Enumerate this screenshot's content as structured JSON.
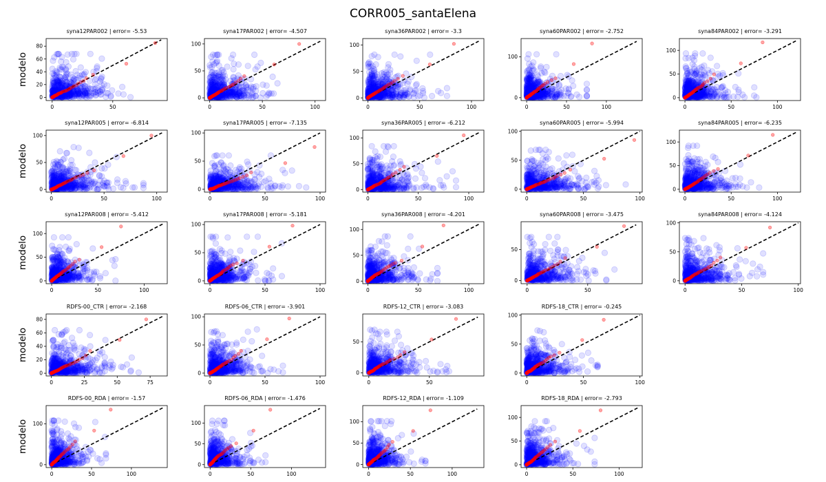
{
  "figure": {
    "title": "CORR005_santaElena"
  },
  "chart_data": {
    "type": "scatter",
    "title": "CORR005_santaElena",
    "ylabel": "modelo",
    "xlabel": "",
    "grid": false,
    "identity_line": "dashed black y=x",
    "series_styles": {
      "observed_vs_model": {
        "color": "#0000ff",
        "alpha": 0.12,
        "marker": "o"
      },
      "quantile_pairs": {
        "color": "#ff0000",
        "alpha": 0.35,
        "marker": "o"
      }
    },
    "panels": [
      {
        "title": "syna12PAR002 | error= -5.53",
        "xticks": [
          0,
          50
        ],
        "yticks": [
          0,
          20,
          40,
          60,
          80
        ],
        "xlim": [
          -5,
          95
        ],
        "ylim": [
          -5,
          92
        ],
        "line_max": 90,
        "obs_max": 85,
        "mod_max": 85
      },
      {
        "title": "syna17PAR002 | error= -4.507",
        "xticks": [
          0,
          50,
          100
        ],
        "yticks": [
          0,
          50,
          100
        ],
        "xlim": [
          -5,
          110
        ],
        "ylim": [
          -5,
          110
        ],
        "line_max": 105,
        "obs_max": 85,
        "mod_max": 100
      },
      {
        "title": "syna36PAR002 | error= -3.3",
        "xticks": [
          0,
          50,
          100
        ],
        "yticks": [
          0,
          50,
          100
        ],
        "xlim": [
          -5,
          112
        ],
        "ylim": [
          -5,
          112
        ],
        "line_max": 107,
        "obs_max": 83,
        "mod_max": 102
      },
      {
        "title": "syna60PAR002 | error= -2.752",
        "xticks": [
          0,
          50,
          100
        ],
        "yticks": [
          0,
          100
        ],
        "xlim": [
          -7,
          145
        ],
        "ylim": [
          -7,
          145
        ],
        "line_max": 138,
        "obs_max": 82,
        "mod_max": 133
      },
      {
        "title": "syna84PAR002 | error= -3.291",
        "xticks": [
          0,
          50,
          100
        ],
        "yticks": [
          0,
          50,
          100
        ],
        "xlim": [
          -6,
          125
        ],
        "ylim": [
          -6,
          125
        ],
        "line_max": 120,
        "obs_max": 84,
        "mod_max": 117
      },
      {
        "title": "syna12PAR005 | error= -6.814",
        "xticks": [
          0,
          50,
          100
        ],
        "yticks": [
          0,
          50,
          100
        ],
        "xlim": [
          -5,
          110
        ],
        "ylim": [
          -5,
          110
        ],
        "line_max": 105,
        "obs_max": 95,
        "mod_max": 100
      },
      {
        "title": "syna17PAR005 | error= -7.135",
        "xticks": [
          0,
          50,
          100
        ],
        "yticks": [
          0,
          50,
          100
        ],
        "xlim": [
          -5,
          105
        ],
        "ylim": [
          -5,
          105
        ],
        "line_max": 100,
        "obs_max": 95,
        "mod_max": 75
      },
      {
        "title": "syna36PAR005 | error= -6.212",
        "xticks": [
          0,
          50,
          100
        ],
        "yticks": [
          0,
          50,
          100
        ],
        "xlim": [
          -5,
          115
        ],
        "ylim": [
          -5,
          115
        ],
        "line_max": 110,
        "obs_max": 95,
        "mod_max": 105
      },
      {
        "title": "syna60PAR005 | error= -5.994",
        "xticks": [
          0,
          50,
          100
        ],
        "yticks": [
          0,
          50,
          100
        ],
        "xlim": [
          -5,
          102
        ],
        "ylim": [
          -5,
          102
        ],
        "line_max": 100,
        "obs_max": 95,
        "mod_max": 85
      },
      {
        "title": "syna84PAR005 | error= -6.235",
        "xticks": [
          0,
          50,
          100
        ],
        "yticks": [
          0,
          50,
          100
        ],
        "xlim": [
          -6,
          125
        ],
        "ylim": [
          -6,
          125
        ],
        "line_max": 120,
        "obs_max": 95,
        "mod_max": 115
      },
      {
        "title": "syna12PAR008 | error= -5.412",
        "xticks": [
          0,
          50,
          100
        ],
        "yticks": [
          0,
          50,
          100
        ],
        "xlim": [
          -6,
          125
        ],
        "ylim": [
          -6,
          125
        ],
        "line_max": 120,
        "obs_max": 75,
        "mod_max": 115
      },
      {
        "title": "syna17PAR008 | error= -5.181",
        "xticks": [
          0,
          50,
          100
        ],
        "yticks": [
          0,
          50,
          100
        ],
        "xlim": [
          -5,
          105
        ],
        "ylim": [
          -5,
          105
        ],
        "line_max": 100,
        "obs_max": 75,
        "mod_max": 98
      },
      {
        "title": "syna36PAR008 | error= -4.201",
        "xticks": [
          0,
          50,
          100
        ],
        "yticks": [
          0,
          50,
          100
        ],
        "xlim": [
          -5,
          115
        ],
        "ylim": [
          -5,
          115
        ],
        "line_max": 110,
        "obs_max": 75,
        "mod_max": 108
      },
      {
        "title": "syna60PAR008 | error= -3.475",
        "xticks": [
          0,
          50
        ],
        "yticks": [
          0,
          50
        ],
        "xlim": [
          -5,
          95
        ],
        "ylim": [
          -5,
          95
        ],
        "line_max": 90,
        "obs_max": 80,
        "mod_max": 88
      },
      {
        "title": "syna84PAR008 | error= -4.124",
        "xticks": [
          0,
          50,
          100
        ],
        "yticks": [
          0,
          50,
          100
        ],
        "xlim": [
          -5,
          102
        ],
        "ylim": [
          -5,
          102
        ],
        "line_max": 100,
        "obs_max": 75,
        "mod_max": 92
      },
      {
        "title": "RDFS-00_CTR | error= -2.168",
        "xticks": [
          0,
          25,
          50,
          75
        ],
        "yticks": [
          0,
          20,
          40,
          60,
          80
        ],
        "xlim": [
          -4,
          88
        ],
        "ylim": [
          -4,
          88
        ],
        "line_max": 85,
        "obs_max": 72,
        "mod_max": 80
      },
      {
        "title": "RDFS-06_CTR | error= -3.901",
        "xticks": [
          0,
          50,
          100
        ],
        "yticks": [
          0,
          50,
          100
        ],
        "xlim": [
          -5,
          105
        ],
        "ylim": [
          -5,
          105
        ],
        "line_max": 100,
        "obs_max": 72,
        "mod_max": 97
      },
      {
        "title": "RDFS-12_CTR | error= -3.083",
        "xticks": [
          0,
          50
        ],
        "yticks": [
          0,
          50
        ],
        "xlim": [
          -5,
          95
        ],
        "ylim": [
          -5,
          95
        ],
        "line_max": 90,
        "obs_max": 72,
        "mod_max": 87
      },
      {
        "title": "RDFS-18_CTR | error= -0.245",
        "xticks": [
          0,
          50,
          100
        ],
        "yticks": [
          0,
          50,
          100
        ],
        "xlim": [
          -5,
          102
        ],
        "ylim": [
          -5,
          102
        ],
        "line_max": 100,
        "obs_max": 68,
        "mod_max": 92
      },
      null,
      {
        "title": "RDFS-00_RDA | error= -1.57",
        "xticks": [
          0,
          50,
          100
        ],
        "yticks": [
          0,
          100
        ],
        "xlim": [
          -7,
          145
        ],
        "ylim": [
          -7,
          145
        ],
        "line_max": 140,
        "obs_max": 74,
        "mod_max": 135
      },
      {
        "title": "RDFS-06_RDA | error= -1.476",
        "xticks": [
          0,
          50,
          100
        ],
        "yticks": [
          0,
          50,
          100
        ],
        "xlim": [
          -7,
          142
        ],
        "ylim": [
          -7,
          142
        ],
        "line_max": 135,
        "obs_max": 74,
        "mod_max": 132
      },
      {
        "title": "RDFS-12_RDA | error= -1.109",
        "xticks": [
          0,
          50,
          100
        ],
        "yticks": [
          0,
          50,
          100
        ],
        "xlim": [
          -7,
          138
        ],
        "ylim": [
          -7,
          138
        ],
        "line_max": 130,
        "obs_max": 74,
        "mod_max": 127
      },
      {
        "title": "RDFS-18_RDA | error= -2.793",
        "xticks": [
          0,
          50,
          100
        ],
        "yticks": [
          0,
          50,
          100
        ],
        "xlim": [
          -6,
          125
        ],
        "ylim": [
          -6,
          125
        ],
        "line_max": 120,
        "obs_max": 80,
        "mod_max": 115
      },
      null
    ]
  }
}
